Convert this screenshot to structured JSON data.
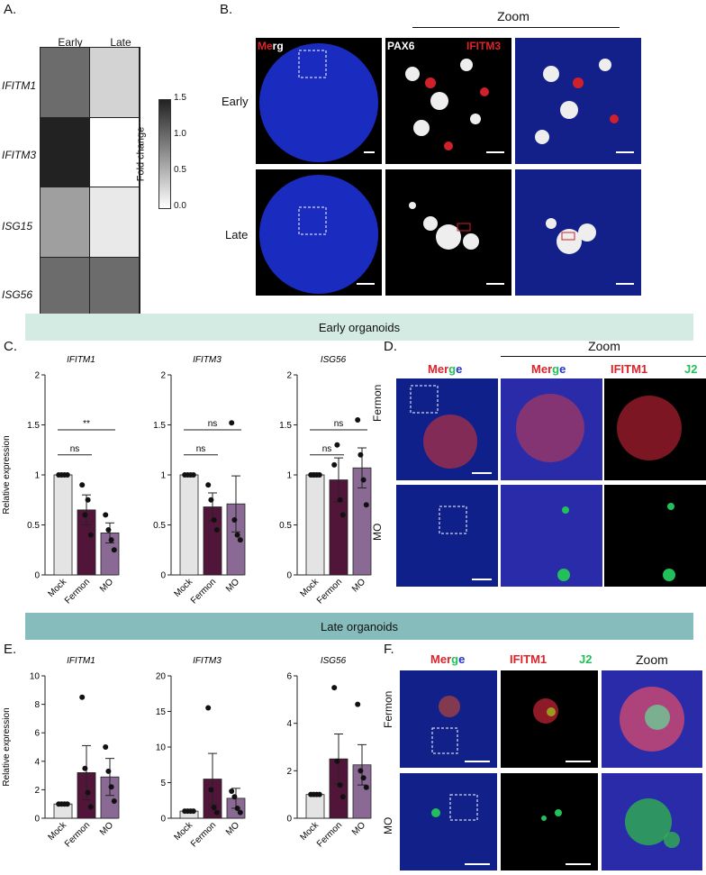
{
  "panels": {
    "A": "A.",
    "B": "B.",
    "C": "C.",
    "D": "D.",
    "E": "E.",
    "F": "F."
  },
  "heatmap": {
    "columns": [
      "Early",
      "Late"
    ],
    "rows": [
      "IFITM1",
      "IFITM3",
      "ISG15",
      "ISG56"
    ],
    "values": [
      [
        1.0,
        0.3
      ],
      [
        1.5,
        0.0
      ],
      [
        0.65,
        0.15
      ],
      [
        1.0,
        1.0
      ]
    ],
    "colorbar_label": "Fold change",
    "colorbar_ticks": [
      "1.5",
      "1.0",
      "0.5",
      "0.0"
    ],
    "color_low": "#ffffff",
    "color_high": "#222222"
  },
  "panel_b": {
    "zoom_label": "Zoom",
    "row_labels": [
      "Early",
      "Late"
    ],
    "merge_label_me": "Me",
    "merge_label_rg": "rg",
    "pax6_label": "PAX6",
    "ifitm3_label": "IFITM3"
  },
  "banners": {
    "early": "Early organoids",
    "late": "Late organoids",
    "early_color": "#d4ebe4",
    "late_color": "#86bcbb"
  },
  "panel_d": {
    "zoom_label": "Zoom",
    "merge_m": "M",
    "merge_er": "er",
    "merge_g": "g",
    "merge_e": "e",
    "ifitm1_label": "IFITM1",
    "j2_label": "J2",
    "row_labels": [
      "Fermon",
      "MO"
    ]
  },
  "panel_f": {
    "zoom_label": "Zoom",
    "ifitm1_label": "IFITM1",
    "j2_label": "J2",
    "row_labels": [
      "Fermon",
      "MO"
    ]
  },
  "chart_data": [
    {
      "type": "bar",
      "panel": "C",
      "title": "IFITM1",
      "ylabel": "Relative expression",
      "categories": [
        "Mock",
        "Fermon",
        "MO"
      ],
      "values": [
        1.0,
        0.65,
        0.42
      ],
      "errors": [
        0.0,
        0.15,
        0.1
      ],
      "points": [
        [
          1,
          1,
          1,
          1
        ],
        [
          0.9,
          0.6,
          0.75,
          0.4
        ],
        [
          0.6,
          0.45,
          0.35,
          0.25
        ]
      ],
      "ylim": [
        0,
        2
      ],
      "yticks": [
        "0",
        "0.5",
        "1",
        "1.5",
        "2"
      ],
      "annotations": [
        {
          "from": 0,
          "to": 1,
          "text": "ns"
        },
        {
          "from": 0,
          "to": 2,
          "text": "**"
        }
      ]
    },
    {
      "type": "bar",
      "panel": "C",
      "title": "IFITM3",
      "ylabel": "",
      "categories": [
        "Mock",
        "Fermon",
        "MO"
      ],
      "values": [
        1.0,
        0.68,
        0.71
      ],
      "errors": [
        0.0,
        0.14,
        0.28
      ],
      "points": [
        [
          1,
          1,
          1,
          1
        ],
        [
          0.9,
          0.75,
          0.55,
          0.45
        ],
        [
          1.52,
          0.55,
          0.4,
          0.35
        ]
      ],
      "ylim": [
        0,
        2
      ],
      "yticks": [
        "0",
        "0.5",
        "1",
        "1.5",
        "2"
      ],
      "annotations": [
        {
          "from": 0,
          "to": 1,
          "text": "ns"
        },
        {
          "from": 0,
          "to": 2,
          "text": "ns"
        }
      ]
    },
    {
      "type": "bar",
      "panel": "C",
      "title": "ISG56",
      "ylabel": "",
      "categories": [
        "Mock",
        "Fermon",
        "MO"
      ],
      "values": [
        1.0,
        0.95,
        1.07
      ],
      "errors": [
        0.02,
        0.22,
        0.2
      ],
      "points": [
        [
          1,
          1,
          1,
          1
        ],
        [
          1.1,
          1.3,
          0.75,
          0.6
        ],
        [
          1.55,
          1.2,
          0.95,
          0.7
        ]
      ],
      "ylim": [
        0,
        2
      ],
      "yticks": [
        "0",
        "0.5",
        "1",
        "1.5",
        "2"
      ],
      "annotations": [
        {
          "from": 0,
          "to": 1,
          "text": "ns"
        },
        {
          "from": 0,
          "to": 2,
          "text": "ns"
        }
      ]
    },
    {
      "type": "bar",
      "panel": "E",
      "title": "IFITM1",
      "ylabel": "Relative expression",
      "categories": [
        "Mock",
        "Fermon",
        "MO"
      ],
      "values": [
        1.0,
        3.2,
        2.9
      ],
      "errors": [
        0.0,
        1.9,
        1.3
      ],
      "points": [
        [
          1,
          1,
          1,
          1
        ],
        [
          8.5,
          3.5,
          1.8,
          0.8
        ],
        [
          5.0,
          3.3,
          2.2,
          1.2
        ]
      ],
      "ylim": [
        0,
        10
      ],
      "yticks": [
        "0",
        "2",
        "4",
        "6",
        "8",
        "10"
      ],
      "annotations": []
    },
    {
      "type": "bar",
      "panel": "E",
      "title": "IFITM3",
      "ylabel": "",
      "categories": [
        "Mock",
        "Fermon",
        "MO"
      ],
      "values": [
        1.0,
        5.5,
        2.8
      ],
      "errors": [
        0.0,
        3.6,
        1.4
      ],
      "points": [
        [
          1,
          1,
          1,
          1
        ],
        [
          15.5,
          4.0,
          1.5,
          0.8
        ],
        [
          3.8,
          3.0,
          1.4,
          0.8
        ]
      ],
      "ylim": [
        0,
        20
      ],
      "yticks": [
        "0",
        "5",
        "10",
        "15",
        "20"
      ],
      "annotations": []
    },
    {
      "type": "bar",
      "panel": "E",
      "title": "ISG56",
      "ylabel": "",
      "categories": [
        "Mock",
        "Fermon",
        "MO"
      ],
      "values": [
        1.0,
        2.5,
        2.25
      ],
      "errors": [
        0.0,
        1.05,
        0.85
      ],
      "points": [
        [
          1,
          1,
          1,
          1
        ],
        [
          5.5,
          2.4,
          1.4,
          0.9
        ],
        [
          4.8,
          2.0,
          1.7,
          1.3
        ]
      ],
      "ylim": [
        0,
        6
      ],
      "yticks": [
        "0",
        "2",
        "4",
        "6"
      ],
      "annotations": []
    }
  ]
}
